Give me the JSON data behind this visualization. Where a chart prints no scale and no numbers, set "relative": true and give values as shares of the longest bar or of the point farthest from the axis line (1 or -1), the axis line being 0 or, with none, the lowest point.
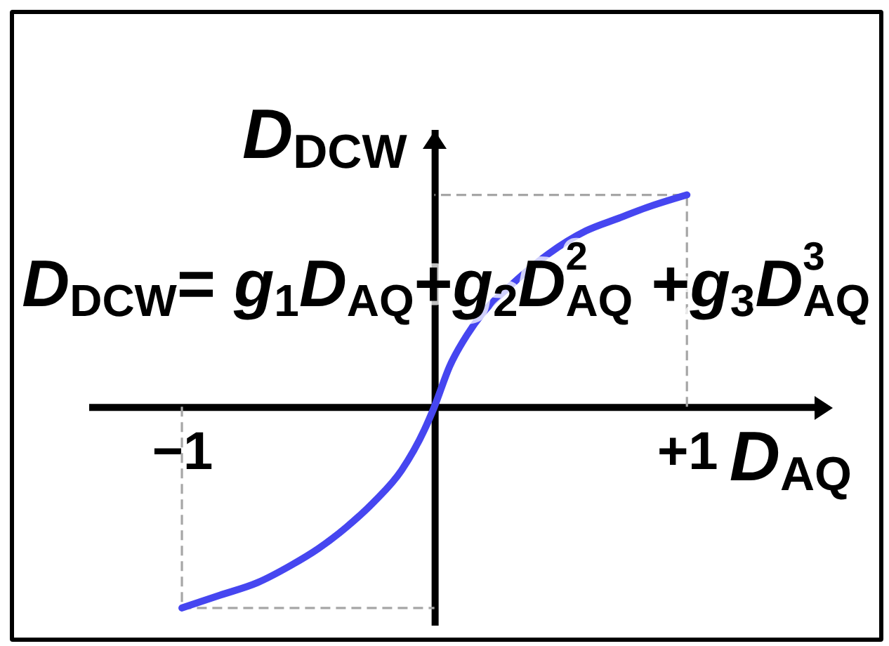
{
  "chart_data": {
    "type": "line",
    "relative": true,
    "xlabel": "D$_{AQ}$",
    "ylabel": "D$_{DCW}$",
    "annotations": [
      "D$_{DCW}$= g$_{1}$D$_{AQ}$+g$_{2}$D$_{AQ}$$^{2}$ +g$_{3}$D$_{AQ}$$^{3}$"
    ],
    "xlim": [
      -1.37,
      1.55
    ],
    "xticks": [
      {
        "value": -1,
        "label": "−1"
      },
      {
        "value": 1,
        "label": "+1"
      }
    ],
    "series": [
      {
        "color": "#a6a6a6",
        "line_style": "dashed",
        "x": [
          1,
          1,
          0
        ],
        "values": [
          0,
          1,
          1
        ]
      },
      {
        "color": "#a6a6a6",
        "line_style": "dashed",
        "x": [
          -1,
          -1,
          0
        ],
        "values": [
          0,
          -0.95,
          -0.95
        ]
      },
      {
        "color": "#4646f0",
        "line_style": "solid",
        "x": [
          -1,
          -0.85,
          -0.7,
          -0.57,
          -0.46,
          -0.35,
          -0.24,
          -0.13,
          -0.04,
          0,
          0.06,
          0.13,
          0.19,
          0.3,
          0.45,
          0.6,
          0.73,
          0.84,
          1
        ],
        "values": [
          -0.95,
          -0.89,
          -0.83,
          -0.75,
          -0.67,
          -0.57,
          -0.45,
          -0.3,
          -0.11,
          0,
          0.19,
          0.34,
          0.44,
          0.57,
          0.72,
          0.83,
          0.89,
          0.94,
          1
        ]
      }
    ]
  }
}
